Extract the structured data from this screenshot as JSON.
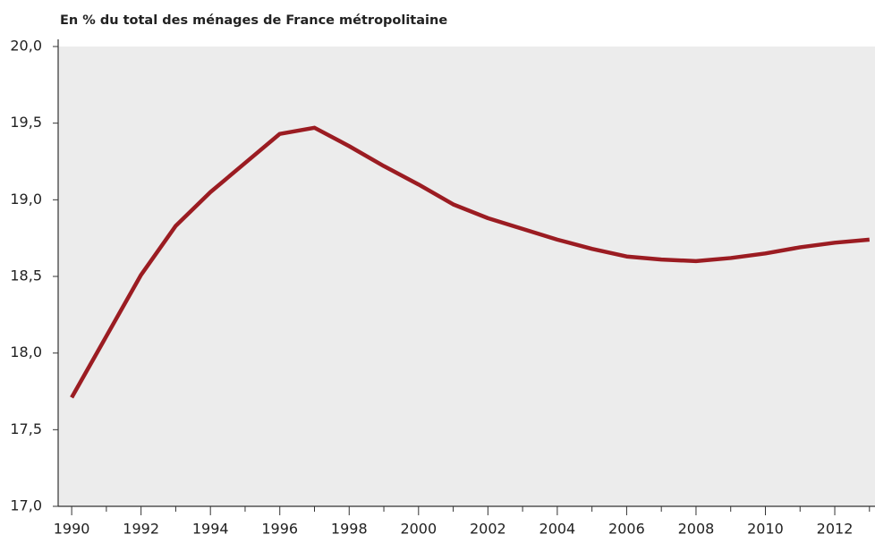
{
  "chart_data": {
    "type": "line",
    "subtitle": "En % du total des ménages de France métropolitaine",
    "x": [
      1990,
      1991,
      1992,
      1993,
      1994,
      1995,
      1996,
      1997,
      1998,
      1999,
      2000,
      2001,
      2002,
      2003,
      2004,
      2005,
      2006,
      2007,
      2008,
      2009,
      2010,
      2011,
      2012,
      2013
    ],
    "series": [
      {
        "color": "#9b1c22",
        "values": [
          17.71,
          18.11,
          18.51,
          18.83,
          19.05,
          19.24,
          19.43,
          19.47,
          19.35,
          19.22,
          19.1,
          18.97,
          18.88,
          18.81,
          18.74,
          18.68,
          18.63,
          18.61,
          18.6,
          18.62,
          18.65,
          18.69,
          18.72,
          18.74
        ]
      }
    ],
    "xlim": [
      1989.61,
      2013.16
    ],
    "xticks": [
      1990,
      1992,
      1994,
      1996,
      1998,
      2000,
      2002,
      2004,
      2006,
      2008,
      2010,
      2012
    ],
    "xminorticks": [
      1991,
      1993,
      1995,
      1997,
      1999,
      2001,
      2003,
      2005,
      2007,
      2009,
      2011,
      2013
    ],
    "ylim": [
      17,
      20
    ],
    "yticks": [
      {
        "value": 17,
        "label": "17,0"
      },
      {
        "value": 17.5,
        "label": "17,5"
      },
      {
        "value": 18,
        "label": "18,0"
      },
      {
        "value": 18.5,
        "label": "18,5"
      },
      {
        "value": 19,
        "label": "19,0"
      },
      {
        "value": 19.5,
        "label": "19,5"
      },
      {
        "value": 20,
        "label": "20,0"
      }
    ],
    "background": "#ececec"
  }
}
